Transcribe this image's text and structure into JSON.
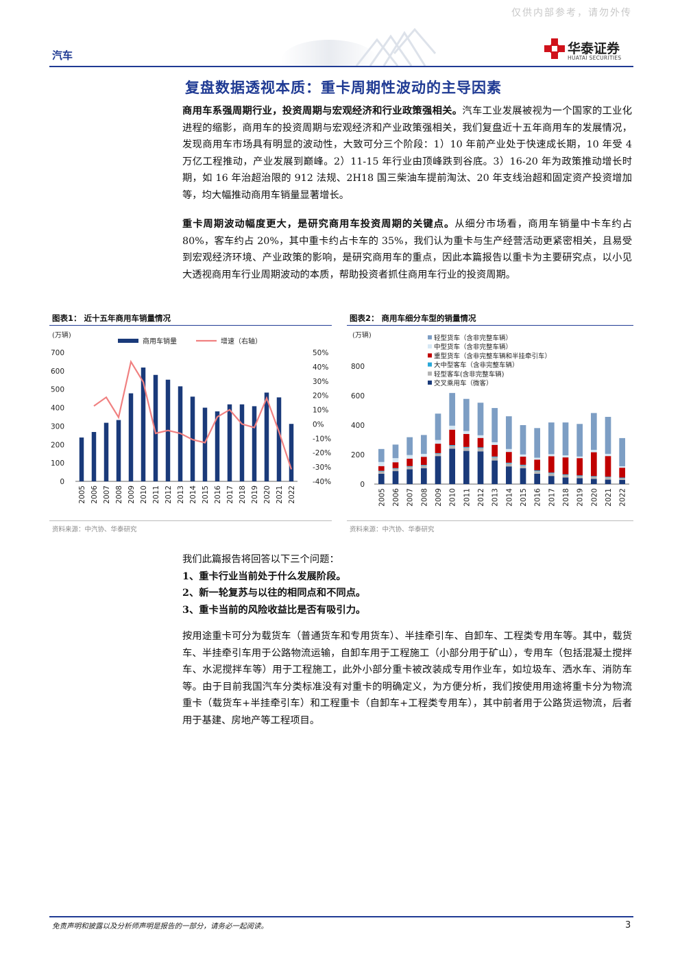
{
  "header": {
    "watermark": "仅供内部参考，请勿外传",
    "section_tag": "汽车",
    "logo_name": "华泰证券",
    "logo_sub": "HUATAI SECURITIES"
  },
  "section_title": "复盘数据透视本质：重卡周期性波动的主导因素",
  "paragraphs": {
    "p1_bold": "商用车系强周期行业，投资周期与宏观经济和行业政策强相关。",
    "p1_text": "汽车工业发展被视为一个国家的工业化进程的缩影，商用车的投资周期与宏观经济和产业政策强相关，我们复盘近十五年商用车的发展情况，发现商用车市场具有明显的波动性，大致可分三个阶段：1）10 年前产业处于快速成长期，10 年受 4 万亿工程推动，产业发展到巅峰。2）11-15 年行业由顶峰跌到谷底。3）16-20 年为政策推动增长时期，如 16 年治超治限的 912 法规、2H18 国三柴油车提前淘汰、20 年支线治超和固定资产投资增加等，均大幅推动商用车销量显著增长。",
    "p2_bold": "重卡周期波动幅度更大，是研究商用车投资周期的关键点。",
    "p2_text": "从细分市场看，商用车销量中卡车约占 80%，客车约占 20%，其中重卡约占卡车的 35%，我们认为重卡与生产经营活动更紧密相关，且易受到宏观经济环境、产业政策的影响，是研究商用车的重点，因此本篇报告以重卡为主要研究点，以小见大透视商用车行业周期波动的本质，帮助投资者抓住商用车行业的投资周期。",
    "p3_text": "按用途重卡可分为载货车（普通货车和专用货车）、半挂牵引车、自卸车、工程类专用车等。其中，载货车、半挂牵引车用于公路物流运输，自卸车用于工程施工（小部分用于矿山），专用车（包括混凝土搅拌车、水泥搅拌车等）用于工程施工，此外小部分重卡被改装成专用作业车，如垃圾车、洒水车、消防车等。由于目前我国汽车分类标准没有对重卡的明确定义，为方便分析，我们按使用用途将重卡分为物流重卡（载货车+半挂牵引车）和工程重卡（自卸车+工程类专用车），其中前者用于公路货运物流，后者用于基建、房地产等工程项目。"
  },
  "questions": {
    "intro": "我们此篇报告将回答以下三个问题：",
    "q1": "1、重卡行业当前处于什么发展阶段。",
    "q2": "2、新一轮复苏与以往的相同点和不同点。",
    "q3": "3、重卡当前的风险收益比是否有吸引力。"
  },
  "figures": {
    "fig1_title": "图表1：  近十五年商用车销量情况",
    "fig1_source": "资料来源：中汽协、华泰研究",
    "fig2_title": "图表2：  商用车细分车型的销量情况",
    "fig2_source": "资料来源：中汽协、华泰研究"
  },
  "chart_data": [
    {
      "type": "bar",
      "unit_label": "(万辆)",
      "categories": [
        "2005",
        "2006",
        "2007",
        "2008",
        "2009",
        "2010",
        "2011",
        "2012",
        "2013",
        "2014",
        "2015",
        "2016",
        "2017",
        "2018",
        "2019",
        "2020",
        "2021",
        "2022"
      ],
      "series": [
        {
          "name": "商用车销量",
          "type": "bar",
          "color": "#1a3a7a",
          "values": [
            238,
            268,
            318,
            333,
            478,
            618,
            578,
            552,
            516,
            460,
            400,
            380,
            418,
            418,
            408,
            482,
            456,
            312
          ]
        },
        {
          "name": "增速（右轴）",
          "type": "line",
          "axis": "right",
          "color": "#f08080",
          "values": [
            null,
            12.6,
            18.7,
            4.7,
            43.5,
            29.3,
            -6.5,
            -4.5,
            -6.5,
            -10.9,
            -13.0,
            5.0,
            10.0,
            0.0,
            -2.4,
            18.1,
            -5.4,
            -31.6
          ]
        }
      ],
      "ylim": [
        0,
        700
      ],
      "yticks": [
        0,
        100,
        200,
        300,
        400,
        500,
        600,
        700
      ],
      "y2lim": [
        -40,
        50
      ],
      "y2ticks": [
        "50%",
        "40%",
        "30%",
        "20%",
        "10%",
        "0%",
        "-10%",
        "-20%",
        "-30%",
        "-40%"
      ],
      "legend": "top"
    },
    {
      "type": "bar",
      "stacked": true,
      "unit_label": "(万辆)",
      "categories": [
        "2005",
        "2006",
        "2007",
        "2008",
        "2009",
        "2010",
        "2011",
        "2012",
        "2013",
        "2014",
        "2015",
        "2016",
        "2017",
        "2018",
        "2019",
        "2020",
        "2021",
        "2022"
      ],
      "series": [
        {
          "name": "交叉乘用车（微客）",
          "color": "#1a3a7a",
          "values": [
            70,
            88,
            100,
            108,
            190,
            240,
            225,
            222,
            160,
            120,
            108,
            70,
            55,
            45,
            40,
            35,
            30,
            28
          ]
        },
        {
          "name": "轻型客车(含非完整车辆)",
          "color": "#b4b4b4",
          "values": [
            16,
            16,
            18,
            18,
            16,
            20,
            22,
            22,
            22,
            20,
            18,
            18,
            18,
            16,
            14,
            15,
            16,
            12
          ]
        },
        {
          "name": "大中型客车（含非完整车辆）",
          "color": "#2aa8d8",
          "values": [
            4,
            4,
            4,
            4,
            4,
            5,
            5,
            5,
            5,
            5,
            5,
            5,
            5,
            5,
            5,
            4,
            4,
            4
          ]
        },
        {
          "name": "重型货车（含非完整车辆和半挂牵引车）",
          "color": "#c00000",
          "values": [
            32,
            40,
            50,
            55,
            64,
            104,
            88,
            64,
            79,
            73,
            55,
            73,
            111,
            115,
            117,
            162,
            140,
            67
          ]
        },
        {
          "name": "中型货车（含非完整车辆）",
          "color": "#d6e8f4",
          "values": [
            28,
            28,
            25,
            20,
            25,
            27,
            20,
            18,
            18,
            20,
            15,
            13,
            14,
            14,
            11,
            16,
            15,
            10
          ]
        },
        {
          "name": "轻型货车（含非完整车辆）",
          "color": "#7d9ec4",
          "values": [
            88,
            92,
            121,
            128,
            179,
            222,
            218,
            221,
            232,
            222,
            199,
            201,
            215,
            223,
            221,
            250,
            251,
            191
          ]
        }
      ],
      "ylim": [
        0,
        800
      ],
      "yticks": [
        0,
        200,
        400,
        600,
        800
      ],
      "legend": "top-left"
    }
  ],
  "footer": {
    "disclaimer": "免责声明和披露以及分析师声明是报告的一部分，请务必一起阅读。",
    "page_number": "3"
  }
}
